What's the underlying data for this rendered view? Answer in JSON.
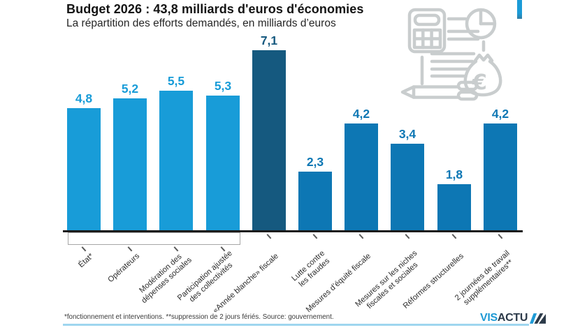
{
  "title": "Budget 2026 : 43,8 milliards d'euros d'économies",
  "subtitle": "La répartition des efforts demandés, en milliards d’euros",
  "footer": {
    "note": "*fonctionnement et interventions. **suppression de 2 jours fériés. Source: gouvernement."
  },
  "logo": {
    "part1": "VIS",
    "part2": "ACTU"
  },
  "icons": {
    "decoration": [
      "calculator-icon",
      "pie-chart-icon",
      "document-lines-icon",
      "pencil-icon",
      "money-bag-icon"
    ],
    "money_bag_symbol": "€"
  },
  "colors": {
    "light_blue": "#189cd8",
    "medium_blue": "#0d77b4",
    "dark_blue": "#15597f",
    "axis": "#1b1b1b",
    "bottom_rule": "#9fd6ef",
    "illustration_gray": "#c9cdce"
  },
  "chart_data": {
    "type": "bar",
    "title": "Budget 2026 : 43,8 milliards d'euros d'économies",
    "subtitle": "La répartition des efforts demandés, en milliards d’euros",
    "unit": "milliards d'euros",
    "total": "43,8",
    "ylim": [
      0,
      7.5
    ],
    "grid": false,
    "legend": "none",
    "categories": [
      [
        "État*"
      ],
      [
        "Opérateurs"
      ],
      [
        "Modération des",
        "dépenses sociales"
      ],
      [
        "Participation ajustée",
        "des collectivités"
      ],
      [
        "«Année blanche» fiscale"
      ],
      [
        "Lutte contre",
        "les fraudes"
      ],
      [
        "Mesures d’équité fiscale"
      ],
      [
        "Mesures sur les niches",
        "fiscales et sociales"
      ],
      [
        "Réformes structurelles"
      ],
      [
        "2 journées de travail",
        "supplémentaires**"
      ]
    ],
    "values": [
      4.8,
      5.2,
      5.5,
      5.3,
      7.1,
      2.3,
      4.2,
      3.4,
      1.8,
      4.2
    ],
    "value_labels": [
      "4,8",
      "5,2",
      "5,5",
      "5,3",
      "7,1",
      "2,3",
      "4,2",
      "3,4",
      "1,8",
      "4,2"
    ],
    "bar_colors": [
      "#189cd8",
      "#189cd8",
      "#189cd8",
      "#189cd8",
      "#15597f",
      "#0d77b4",
      "#0d77b4",
      "#0d77b4",
      "#0d77b4",
      "#0d77b4"
    ],
    "group_box": {
      "covers_first_n_bars": 4
    }
  }
}
